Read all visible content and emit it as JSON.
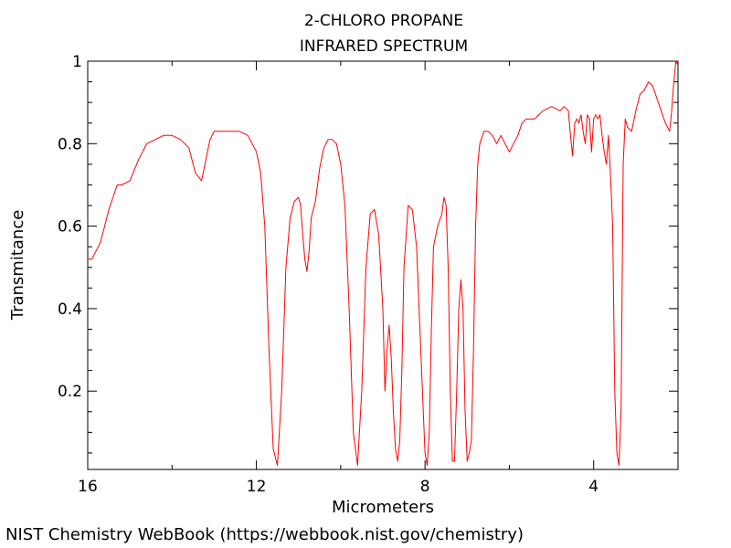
{
  "chart_data": {
    "type": "line",
    "title": "2-CHLORO PROPANE",
    "subtitle": "INFRARED SPECTRUM",
    "xlabel": "Micrometers",
    "ylabel": "Transmitance",
    "xlim": [
      16,
      2
    ],
    "ylim": [
      0.01,
      1.0
    ],
    "x_ticks": [
      16,
      12,
      8,
      4
    ],
    "y_ticks": [
      0.2,
      0.4,
      0.6,
      0.8,
      1
    ],
    "grid": false,
    "series": [
      {
        "color": "#ff0000",
        "x": [
          16.0,
          15.9,
          15.8,
          15.7,
          15.6,
          15.5,
          15.4,
          15.3,
          15.2,
          15.0,
          14.8,
          14.6,
          14.4,
          14.2,
          14.0,
          13.8,
          13.6,
          13.45,
          13.3,
          13.2,
          13.1,
          13.0,
          12.9,
          12.8,
          12.6,
          12.4,
          12.2,
          12.0,
          11.9,
          11.8,
          11.7,
          11.6,
          11.5,
          11.4,
          11.3,
          11.2,
          11.1,
          11.0,
          10.95,
          10.9,
          10.85,
          10.8,
          10.75,
          10.7,
          10.6,
          10.5,
          10.4,
          10.3,
          10.2,
          10.1,
          10.0,
          9.9,
          9.8,
          9.7,
          9.6,
          9.5,
          9.4,
          9.3,
          9.2,
          9.1,
          9.0,
          8.95,
          8.9,
          8.85,
          8.8,
          8.75,
          8.7,
          8.65,
          8.6,
          8.55,
          8.5,
          8.4,
          8.3,
          8.2,
          8.1,
          8.0,
          7.95,
          7.9,
          7.85,
          7.8,
          7.7,
          7.6,
          7.55,
          7.5,
          7.45,
          7.4,
          7.35,
          7.3,
          7.25,
          7.2,
          7.15,
          7.1,
          7.05,
          7.0,
          6.95,
          6.9,
          6.85,
          6.8,
          6.75,
          6.7,
          6.6,
          6.5,
          6.4,
          6.3,
          6.2,
          6.0,
          5.9,
          5.8,
          5.7,
          5.6,
          5.4,
          5.2,
          5.0,
          4.8,
          4.7,
          4.6,
          4.55,
          4.5,
          4.45,
          4.4,
          4.35,
          4.3,
          4.25,
          4.2,
          4.15,
          4.1,
          4.05,
          4.0,
          3.95,
          3.9,
          3.85,
          3.8,
          3.75,
          3.7,
          3.65,
          3.6,
          3.55,
          3.5,
          3.45,
          3.4,
          3.35,
          3.3,
          3.25,
          3.2,
          3.1,
          3.0,
          2.9,
          2.8,
          2.7,
          2.6,
          2.5,
          2.4,
          2.3,
          2.2,
          2.15,
          2.1,
          2.05,
          2.0
        ],
        "y": [
          0.52,
          0.52,
          0.54,
          0.56,
          0.6,
          0.64,
          0.67,
          0.7,
          0.7,
          0.71,
          0.76,
          0.8,
          0.81,
          0.82,
          0.82,
          0.81,
          0.79,
          0.73,
          0.71,
          0.76,
          0.81,
          0.83,
          0.83,
          0.83,
          0.83,
          0.83,
          0.82,
          0.78,
          0.73,
          0.6,
          0.3,
          0.06,
          0.02,
          0.2,
          0.5,
          0.62,
          0.66,
          0.67,
          0.65,
          0.58,
          0.52,
          0.49,
          0.54,
          0.62,
          0.66,
          0.74,
          0.79,
          0.81,
          0.81,
          0.8,
          0.75,
          0.65,
          0.4,
          0.1,
          0.02,
          0.2,
          0.5,
          0.63,
          0.64,
          0.58,
          0.4,
          0.2,
          0.3,
          0.36,
          0.28,
          0.15,
          0.06,
          0.03,
          0.08,
          0.25,
          0.5,
          0.65,
          0.64,
          0.55,
          0.3,
          0.05,
          0.02,
          0.1,
          0.35,
          0.55,
          0.6,
          0.63,
          0.67,
          0.65,
          0.5,
          0.2,
          0.03,
          0.03,
          0.2,
          0.4,
          0.47,
          0.4,
          0.15,
          0.03,
          0.05,
          0.08,
          0.3,
          0.6,
          0.75,
          0.8,
          0.83,
          0.83,
          0.82,
          0.8,
          0.82,
          0.78,
          0.8,
          0.82,
          0.85,
          0.86,
          0.86,
          0.88,
          0.89,
          0.88,
          0.89,
          0.88,
          0.82,
          0.77,
          0.85,
          0.86,
          0.85,
          0.87,
          0.83,
          0.8,
          0.87,
          0.86,
          0.78,
          0.86,
          0.87,
          0.86,
          0.87,
          0.82,
          0.78,
          0.75,
          0.82,
          0.72,
          0.6,
          0.2,
          0.05,
          0.02,
          0.15,
          0.75,
          0.86,
          0.84,
          0.83,
          0.88,
          0.92,
          0.93,
          0.95,
          0.94,
          0.91,
          0.88,
          0.85,
          0.83,
          0.88,
          0.95,
          1.0,
          0.99
        ]
      }
    ]
  },
  "credit": "NIST Chemistry WebBook (https://webbook.nist.gov/chemistry)"
}
